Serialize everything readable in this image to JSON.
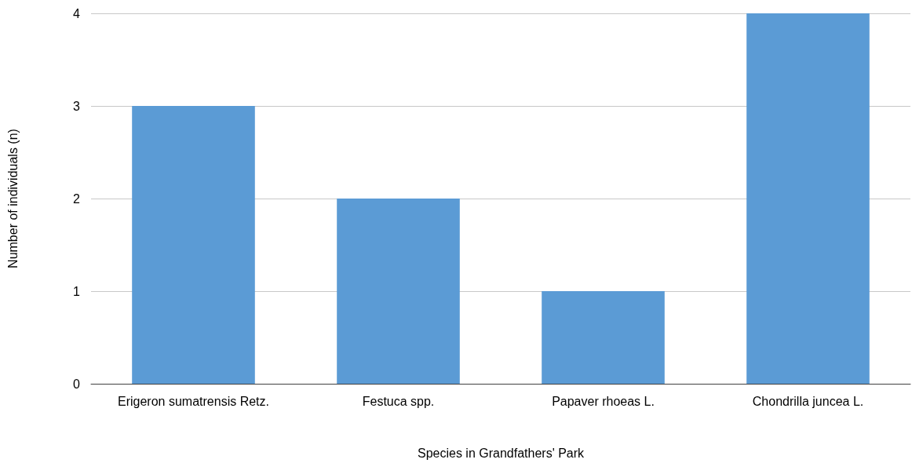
{
  "chart_data": {
    "type": "bar",
    "xlabel": "Species in Grandfathers' Park",
    "ylabel": "Number of individuals (n)",
    "categories": [
      "Erigeron sumatrensis Retz.",
      "Festuca spp.",
      "Papaver rhoeas L.",
      "Chondrilla juncea L."
    ],
    "values": [
      3,
      2,
      1,
      4
    ],
    "color": "#5b9bd5",
    "ylim": [
      0,
      4
    ],
    "yticks": [
      0,
      1,
      2,
      3,
      4
    ],
    "grid": "y"
  }
}
